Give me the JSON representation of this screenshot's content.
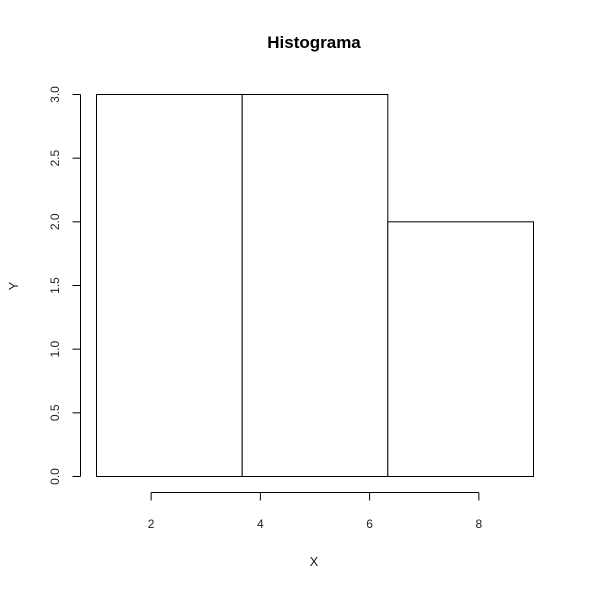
{
  "chart_data": {
    "type": "bar",
    "title": "Histograma",
    "xlabel": "X",
    "ylabel": "Y",
    "bins": [
      {
        "start": 1.0,
        "end": 3.667,
        "count": 3
      },
      {
        "start": 3.667,
        "end": 6.333,
        "count": 3
      },
      {
        "start": 6.333,
        "end": 9.0,
        "count": 2
      }
    ],
    "xlim": [
      1.0,
      9.0
    ],
    "ylim": [
      0,
      3
    ],
    "x_ticks": [
      2,
      4,
      6,
      8
    ],
    "y_ticks": [
      "0.0",
      "0.5",
      "1.0",
      "1.5",
      "2.0",
      "2.5",
      "3.0"
    ],
    "grid": false,
    "colors": {
      "fill": "#ffffff",
      "stroke": "#000000"
    }
  }
}
